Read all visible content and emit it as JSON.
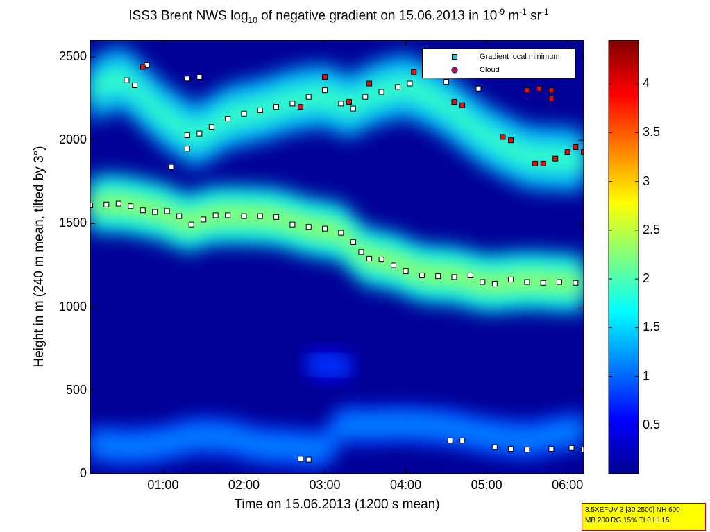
{
  "chart_data": {
    "type": "heatmap",
    "title": {
      "prefix": "ISS3 Brent NWS log",
      "sub": "10",
      "middle": " of negative gradient on 15.06.2013 in 10",
      "sup1": "-9",
      "unit1": " m",
      "sup2": "-1",
      "unit2": " sr",
      "sup3": "-1"
    },
    "xlabel": "Time on 15.06.2013 (1200 s mean)",
    "ylabel": "Height in m (240 m mean, tilted by 3°)",
    "x_unit": "hours since 00:00",
    "xlim": [
      0.1,
      6.2
    ],
    "ylim": [
      0,
      2600
    ],
    "x_ticks": [
      {
        "value": 1,
        "label": "01:00"
      },
      {
        "value": 2,
        "label": "02:00"
      },
      {
        "value": 3,
        "label": "03:00"
      },
      {
        "value": 4,
        "label": "04:00"
      },
      {
        "value": 5,
        "label": "05:00"
      },
      {
        "value": 6,
        "label": "06:00"
      }
    ],
    "y_ticks": [
      {
        "value": 0,
        "label": "0"
      },
      {
        "value": 500,
        "label": "500"
      },
      {
        "value": 1000,
        "label": "1000"
      },
      {
        "value": 1500,
        "label": "1500"
      },
      {
        "value": 2000,
        "label": "2000"
      },
      {
        "value": 2500,
        "label": "2500"
      }
    ],
    "colorbar": {
      "range": [
        0,
        4.45
      ],
      "ticks": [
        {
          "value": 0.5,
          "label": "0.5"
        },
        {
          "value": 1,
          "label": "1"
        },
        {
          "value": 1.5,
          "label": "1.5"
        },
        {
          "value": 2,
          "label": "2"
        },
        {
          "value": 2.5,
          "label": "2.5"
        },
        {
          "value": 3,
          "label": "3"
        },
        {
          "value": 3.5,
          "label": "3.5"
        },
        {
          "value": 4,
          "label": "4"
        }
      ]
    },
    "legend": {
      "position": "top-right",
      "entries": [
        {
          "label": "Gradient local minimum",
          "marker": "square",
          "color": "#22c8d8"
        },
        {
          "label": "Cloud",
          "marker": "circle",
          "color": "#e0101a"
        }
      ]
    },
    "background_value": 0.1,
    "bands": [
      {
        "name": "lower layer",
        "value": 2.3,
        "spread": 170,
        "points": [
          [
            0.1,
            1620
          ],
          [
            0.5,
            1620
          ],
          [
            1.0,
            1570
          ],
          [
            1.3,
            1500
          ],
          [
            1.6,
            1550
          ],
          [
            2.0,
            1550
          ],
          [
            2.4,
            1540
          ],
          [
            2.8,
            1480
          ],
          [
            3.2,
            1450
          ],
          [
            3.5,
            1300
          ],
          [
            3.8,
            1280
          ],
          [
            4.2,
            1200
          ],
          [
            4.6,
            1190
          ],
          [
            5.0,
            1140
          ],
          [
            5.5,
            1160
          ],
          [
            6.2,
            1140
          ]
        ]
      },
      {
        "name": "upper layer",
        "value": 1.9,
        "spread": 190,
        "points": [
          [
            0.1,
            2300
          ],
          [
            0.5,
            2380
          ],
          [
            1.0,
            2150
          ],
          [
            1.4,
            2020
          ],
          [
            1.8,
            2140
          ],
          [
            2.2,
            2180
          ],
          [
            2.6,
            2240
          ],
          [
            3.0,
            2270
          ],
          [
            3.3,
            2200
          ],
          [
            3.6,
            2280
          ],
          [
            4.0,
            2330
          ],
          [
            4.4,
            2240
          ],
          [
            5.0,
            2020
          ],
          [
            5.5,
            1900
          ],
          [
            6.2,
            1880
          ]
        ]
      },
      {
        "name": "surface echo",
        "value": 1.2,
        "spread": 110,
        "points": [
          [
            0.1,
            180
          ],
          [
            0.6,
            160
          ],
          [
            1.0,
            180
          ],
          [
            1.4,
            230
          ],
          [
            1.8,
            220
          ],
          [
            2.2,
            170
          ],
          [
            2.6,
            160
          ],
          [
            3.0,
            140
          ],
          [
            3.2,
            300
          ],
          [
            3.5,
            290
          ],
          [
            4.0,
            300
          ],
          [
            4.5,
            280
          ],
          [
            5.0,
            230
          ],
          [
            5.5,
            200
          ],
          [
            6.2,
            270
          ]
        ]
      },
      {
        "name": "mid cloud",
        "value": 0.9,
        "spread": 80,
        "points": [
          [
            2.8,
            660
          ],
          [
            3.1,
            650
          ],
          [
            3.3,
            640
          ]
        ]
      }
    ],
    "series": [
      {
        "name": "Gradient local minimum",
        "marker": "square",
        "points": [
          [
            0.1,
            1610
          ],
          [
            0.3,
            1615
          ],
          [
            0.45,
            1620
          ],
          [
            0.6,
            1605
          ],
          [
            0.75,
            1580
          ],
          [
            0.9,
            1570
          ],
          [
            1.05,
            1575
          ],
          [
            1.2,
            1545
          ],
          [
            1.35,
            1495
          ],
          [
            1.5,
            1525
          ],
          [
            1.65,
            1550
          ],
          [
            1.8,
            1550
          ],
          [
            2.0,
            1545
          ],
          [
            2.2,
            1545
          ],
          [
            2.4,
            1540
          ],
          [
            2.6,
            1495
          ],
          [
            2.8,
            1480
          ],
          [
            3.0,
            1470
          ],
          [
            3.2,
            1445
          ],
          [
            3.35,
            1390
          ],
          [
            3.45,
            1330
          ],
          [
            3.55,
            1290
          ],
          [
            3.7,
            1285
          ],
          [
            3.85,
            1250
          ],
          [
            4.0,
            1215
          ],
          [
            4.2,
            1190
          ],
          [
            4.4,
            1185
          ],
          [
            4.6,
            1180
          ],
          [
            4.8,
            1190
          ],
          [
            4.95,
            1150
          ],
          [
            5.1,
            1140
          ],
          [
            5.3,
            1165
          ],
          [
            5.5,
            1150
          ],
          [
            5.7,
            1145
          ],
          [
            5.9,
            1150
          ],
          [
            6.1,
            1145
          ],
          [
            1.3,
            2030
          ],
          [
            1.45,
            2040
          ],
          [
            1.6,
            2080
          ],
          [
            1.8,
            2130
          ],
          [
            2.0,
            2160
          ],
          [
            2.2,
            2180
          ],
          [
            2.4,
            2200
          ],
          [
            2.6,
            2220
          ],
          [
            2.8,
            2260
          ],
          [
            3.0,
            2300
          ],
          [
            3.2,
            2220
          ],
          [
            3.35,
            2190
          ],
          [
            3.5,
            2260
          ],
          [
            3.7,
            2290
          ],
          [
            3.9,
            2320
          ],
          [
            4.05,
            2340
          ],
          [
            0.55,
            2360
          ],
          [
            0.65,
            2330
          ],
          [
            0.8,
            2450
          ],
          [
            1.3,
            2370
          ],
          [
            1.45,
            2380
          ],
          [
            4.5,
            2350
          ],
          [
            4.9,
            2310
          ],
          [
            1.1,
            1840
          ],
          [
            1.3,
            1950
          ],
          [
            4.55,
            200
          ],
          [
            4.7,
            200
          ],
          [
            5.1,
            160
          ],
          [
            5.3,
            150
          ],
          [
            5.5,
            145
          ],
          [
            5.8,
            150
          ],
          [
            6.05,
            155
          ],
          [
            6.2,
            145
          ],
          [
            2.7,
            90
          ],
          [
            2.8,
            85
          ]
        ]
      },
      {
        "name": "Cloud",
        "marker": "circle",
        "points": [
          [
            0.75,
            2440
          ],
          [
            3.0,
            2380
          ],
          [
            3.55,
            2340
          ],
          [
            4.1,
            2410
          ],
          [
            4.45,
            2400
          ],
          [
            4.6,
            2230
          ],
          [
            4.7,
            2210
          ],
          [
            5.2,
            2020
          ],
          [
            5.3,
            2000
          ],
          [
            5.6,
            1860
          ],
          [
            5.7,
            1860
          ],
          [
            5.85,
            1890
          ],
          [
            6.0,
            1930
          ],
          [
            6.1,
            1960
          ],
          [
            6.2,
            1930
          ],
          [
            5.5,
            2300
          ],
          [
            5.65,
            2310
          ],
          [
            5.8,
            2300
          ],
          [
            5.8,
            2250
          ],
          [
            2.7,
            2200
          ],
          [
            3.3,
            2230
          ]
        ]
      }
    ]
  },
  "info_box": {
    "line1": "3.5XEFUV 3 [30 2500] NH 600",
    "line2": "MB 200 RG 15% TI 0 HI 15"
  }
}
